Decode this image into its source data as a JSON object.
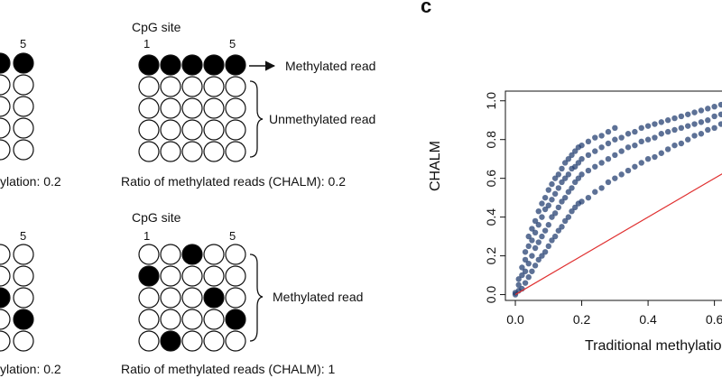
{
  "panel_a": {
    "left_cut": {
      "top_index": "5",
      "top_ratio": "ylation: 0.2",
      "bottom_index": "5",
      "bottom_ratio": "ylation: 0.2"
    },
    "top": {
      "site_label": "CpG site",
      "index_start": "1",
      "index_end": "5",
      "methylated_label": "Methylated read",
      "unmethylated_label": "Unmethylated read",
      "ratio": "Ratio of methylated reads (CHALM): 0.2"
    },
    "bottom": {
      "site_label": "CpG site",
      "index_start": "1",
      "index_end": "5",
      "methylated_label": "Methylated read",
      "ratio": "Ratio of methylated reads (CHALM): 1"
    }
  },
  "panel_c": {
    "letter": "c",
    "ylabel": "CHALM",
    "xlabel": "Traditional methylatio",
    "yticks": [
      "0.0",
      "0.2",
      "0.4",
      "0.6",
      "0.8",
      "1.0"
    ],
    "xticks": [
      "0.0",
      "0.2",
      "0.4",
      "0.6"
    ]
  },
  "chart_data": {
    "type": "scatter",
    "title": "",
    "xlabel": "Traditional methylatio",
    "ylabel": "CHALM",
    "xlim": [
      -0.03,
      0.65
    ],
    "ylim": [
      -0.03,
      1.05
    ],
    "point_color": "#1f3a6e",
    "reference_line": {
      "from": [
        0,
        0
      ],
      "to": [
        1,
        1
      ],
      "color": "#e03030"
    },
    "series": [
      {
        "values": [
          [
            0.0,
            0.0
          ],
          [
            0.0,
            0.01
          ],
          [
            0.01,
            0.02
          ],
          [
            0.01,
            0.05
          ],
          [
            0.01,
            0.08
          ],
          [
            0.02,
            0.03
          ],
          [
            0.02,
            0.1
          ],
          [
            0.02,
            0.14
          ],
          [
            0.03,
            0.06
          ],
          [
            0.03,
            0.12
          ],
          [
            0.03,
            0.18
          ],
          [
            0.03,
            0.22
          ],
          [
            0.04,
            0.09
          ],
          [
            0.04,
            0.16
          ],
          [
            0.04,
            0.25
          ],
          [
            0.04,
            0.3
          ],
          [
            0.05,
            0.12
          ],
          [
            0.05,
            0.2
          ],
          [
            0.05,
            0.28
          ],
          [
            0.05,
            0.34
          ],
          [
            0.06,
            0.15
          ],
          [
            0.06,
            0.24
          ],
          [
            0.06,
            0.32
          ],
          [
            0.06,
            0.38
          ],
          [
            0.07,
            0.18
          ],
          [
            0.07,
            0.27
          ],
          [
            0.07,
            0.36
          ],
          [
            0.07,
            0.43
          ],
          [
            0.08,
            0.2
          ],
          [
            0.08,
            0.3
          ],
          [
            0.08,
            0.4
          ],
          [
            0.08,
            0.47
          ],
          [
            0.09,
            0.22
          ],
          [
            0.09,
            0.33
          ],
          [
            0.09,
            0.44
          ],
          [
            0.09,
            0.5
          ],
          [
            0.1,
            0.25
          ],
          [
            0.1,
            0.36
          ],
          [
            0.1,
            0.46
          ],
          [
            0.1,
            0.54
          ],
          [
            0.11,
            0.28
          ],
          [
            0.11,
            0.4
          ],
          [
            0.11,
            0.49
          ],
          [
            0.11,
            0.57
          ],
          [
            0.12,
            0.3
          ],
          [
            0.12,
            0.42
          ],
          [
            0.12,
            0.52
          ],
          [
            0.12,
            0.6
          ],
          [
            0.13,
            0.33
          ],
          [
            0.13,
            0.45
          ],
          [
            0.13,
            0.55
          ],
          [
            0.13,
            0.62
          ],
          [
            0.14,
            0.35
          ],
          [
            0.14,
            0.48
          ],
          [
            0.14,
            0.58
          ],
          [
            0.14,
            0.65
          ],
          [
            0.15,
            0.38
          ],
          [
            0.15,
            0.5
          ],
          [
            0.15,
            0.6
          ],
          [
            0.15,
            0.68
          ],
          [
            0.16,
            0.4
          ],
          [
            0.16,
            0.53
          ],
          [
            0.16,
            0.62
          ],
          [
            0.16,
            0.7
          ],
          [
            0.17,
            0.43
          ],
          [
            0.17,
            0.55
          ],
          [
            0.17,
            0.65
          ],
          [
            0.17,
            0.72
          ],
          [
            0.18,
            0.45
          ],
          [
            0.18,
            0.58
          ],
          [
            0.18,
            0.66
          ],
          [
            0.18,
            0.74
          ],
          [
            0.19,
            0.47
          ],
          [
            0.19,
            0.6
          ],
          [
            0.19,
            0.68
          ],
          [
            0.19,
            0.76
          ],
          [
            0.2,
            0.48
          ],
          [
            0.2,
            0.62
          ],
          [
            0.2,
            0.7
          ],
          [
            0.2,
            0.77
          ],
          [
            0.22,
            0.5
          ],
          [
            0.22,
            0.64
          ],
          [
            0.22,
            0.72
          ],
          [
            0.22,
            0.79
          ],
          [
            0.24,
            0.53
          ],
          [
            0.24,
            0.66
          ],
          [
            0.24,
            0.74
          ],
          [
            0.24,
            0.81
          ],
          [
            0.26,
            0.55
          ],
          [
            0.26,
            0.68
          ],
          [
            0.26,
            0.76
          ],
          [
            0.26,
            0.82
          ],
          [
            0.28,
            0.58
          ],
          [
            0.28,
            0.7
          ],
          [
            0.28,
            0.78
          ],
          [
            0.28,
            0.84
          ],
          [
            0.3,
            0.6
          ],
          [
            0.3,
            0.72
          ],
          [
            0.3,
            0.8
          ],
          [
            0.3,
            0.86
          ],
          [
            0.32,
            0.62
          ],
          [
            0.32,
            0.74
          ],
          [
            0.32,
            0.81
          ],
          [
            0.34,
            0.64
          ],
          [
            0.34,
            0.76
          ],
          [
            0.34,
            0.83
          ],
          [
            0.36,
            0.66
          ],
          [
            0.36,
            0.77
          ],
          [
            0.36,
            0.84
          ],
          [
            0.38,
            0.68
          ],
          [
            0.38,
            0.79
          ],
          [
            0.38,
            0.86
          ],
          [
            0.4,
            0.7
          ],
          [
            0.4,
            0.8
          ],
          [
            0.4,
            0.87
          ],
          [
            0.42,
            0.71
          ],
          [
            0.42,
            0.81
          ],
          [
            0.42,
            0.88
          ],
          [
            0.44,
            0.73
          ],
          [
            0.44,
            0.83
          ],
          [
            0.44,
            0.89
          ],
          [
            0.46,
            0.75
          ],
          [
            0.46,
            0.84
          ],
          [
            0.46,
            0.9
          ],
          [
            0.48,
            0.77
          ],
          [
            0.48,
            0.85
          ],
          [
            0.48,
            0.91
          ],
          [
            0.5,
            0.78
          ],
          [
            0.5,
            0.86
          ],
          [
            0.5,
            0.92
          ],
          [
            0.52,
            0.8
          ],
          [
            0.52,
            0.87
          ],
          [
            0.52,
            0.93
          ],
          [
            0.54,
            0.82
          ],
          [
            0.54,
            0.88
          ],
          [
            0.54,
            0.94
          ],
          [
            0.56,
            0.83
          ],
          [
            0.56,
            0.89
          ],
          [
            0.56,
            0.95
          ],
          [
            0.58,
            0.85
          ],
          [
            0.58,
            0.9
          ],
          [
            0.58,
            0.96
          ],
          [
            0.6,
            0.86
          ],
          [
            0.6,
            0.92
          ],
          [
            0.6,
            0.97
          ],
          [
            0.62,
            0.88
          ],
          [
            0.62,
            0.93
          ],
          [
            0.62,
            0.98
          ],
          [
            0.64,
            0.9
          ],
          [
            0.64,
            0.95
          ]
        ]
      }
    ]
  }
}
